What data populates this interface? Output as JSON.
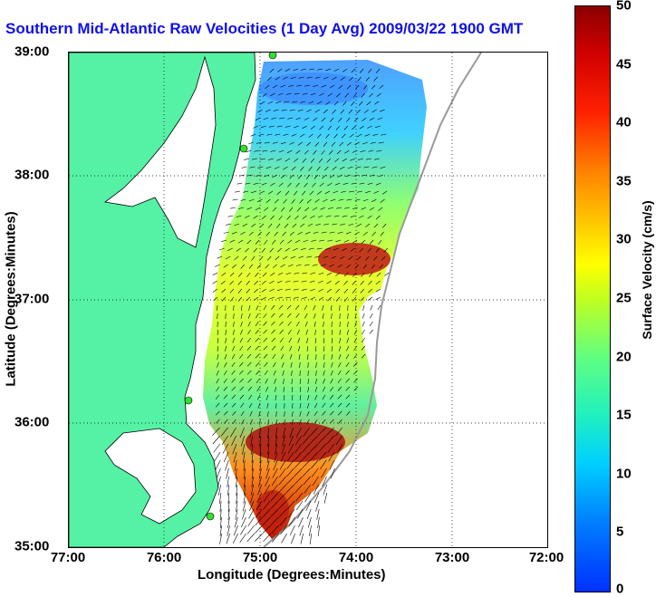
{
  "title": "Southern Mid-Atlantic Raw Velocities (1 Day Avg) 2009/03/22 1900 GMT",
  "x_axis": {
    "label": "Longitude (Degrees:Minutes)",
    "ticks": [
      "77:00",
      "76:00",
      "75:00",
      "74:00",
      "73:00",
      "72:00"
    ]
  },
  "y_axis": {
    "label": "Latitude (Degrees:Minutes)",
    "ticks": [
      "39:00",
      "38:00",
      "37:00",
      "36:00",
      "35:00"
    ]
  },
  "colorbar": {
    "label": "Surface Velocity (cm/s)",
    "ticks": [
      "50",
      "45",
      "40",
      "35",
      "30",
      "25",
      "20",
      "15",
      "10",
      "5",
      "0"
    ]
  },
  "colors": {
    "land": "#55f2a5",
    "coastline": "#000000",
    "title": "#1010e8",
    "fast": "#b00000",
    "slow": "#2080ff"
  }
}
